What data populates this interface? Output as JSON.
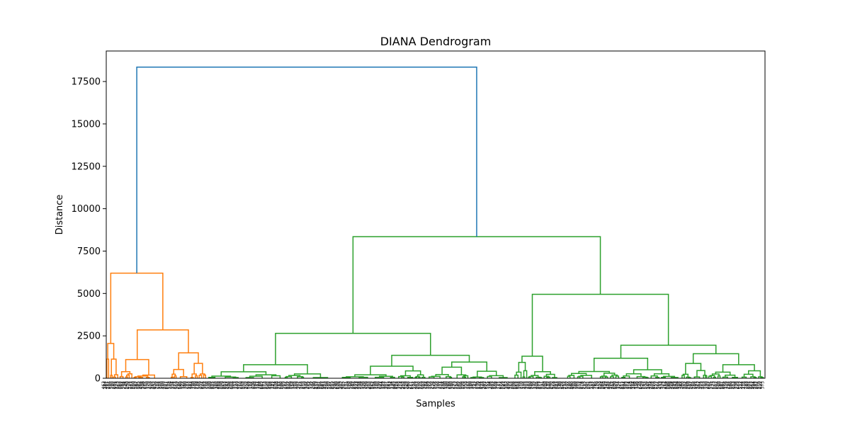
{
  "chart_data": {
    "type": "dendrogram",
    "title": "DIANA Dendrogram",
    "xlabel": "Samples",
    "ylabel": "Distance",
    "ylim": [
      0,
      19300
    ],
    "yticks": [
      0,
      2500,
      5000,
      7500,
      10000,
      12500,
      15000,
      17500
    ],
    "grid": false,
    "colors": {
      "root": "#1f77b4",
      "cluster_1": "#ff7f0e",
      "cluster_2": "#2ca02c"
    },
    "root_height": 18350,
    "clusters": [
      {
        "name": "cluster_1",
        "height": 6200,
        "subclusters": [
          {
            "height": 2050,
            "note": "leftmost narrow branch"
          },
          {
            "height": 2850,
            "children_heights": [
              1100,
              1500
            ]
          }
        ]
      },
      {
        "name": "cluster_2",
        "height": 8350,
        "subclusters": [
          {
            "height": 2650,
            "children_heights": [
              800,
              1350
            ]
          },
          {
            "height": 4950,
            "children_heights": [
              1300,
              1950
            ]
          }
        ]
      }
    ]
  }
}
